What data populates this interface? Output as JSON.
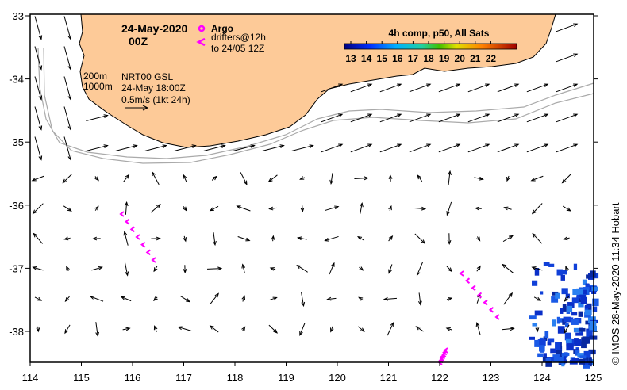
{
  "title": {
    "date": "24-May-2020",
    "time": "00Z"
  },
  "legend": {
    "argo": "Argo",
    "drifters": "drifters@12h",
    "drifters_to": "to 24/05 12Z",
    "argo_color": "#ff00ff"
  },
  "isobaths": {
    "a": "200m",
    "b": "1000m"
  },
  "model": {
    "name": "NRT00 GSL",
    "time": "24-May 18:00Z",
    "scale": "0.5m/s (1kt 24h)"
  },
  "colorbar": {
    "title": "4h comp, p50, All Sats",
    "ticks": [
      "13",
      "14",
      "15",
      "16",
      "17",
      "18",
      "19",
      "20",
      "21",
      "22"
    ]
  },
  "credit": "© IMOS 28-May-2020 11:34 Hobart",
  "axes": {
    "x_ticks": [
      "114",
      "115",
      "116",
      "117",
      "118",
      "119",
      "120",
      "121",
      "122",
      "123",
      "124",
      "125"
    ],
    "y_ticks": [
      "-33",
      "-34",
      "-35",
      "-36",
      "-37",
      "-38"
    ]
  },
  "colors": {
    "land": "#fdca98",
    "isobath": "#aaaaaa",
    "drifter": "#ff00ff"
  }
}
